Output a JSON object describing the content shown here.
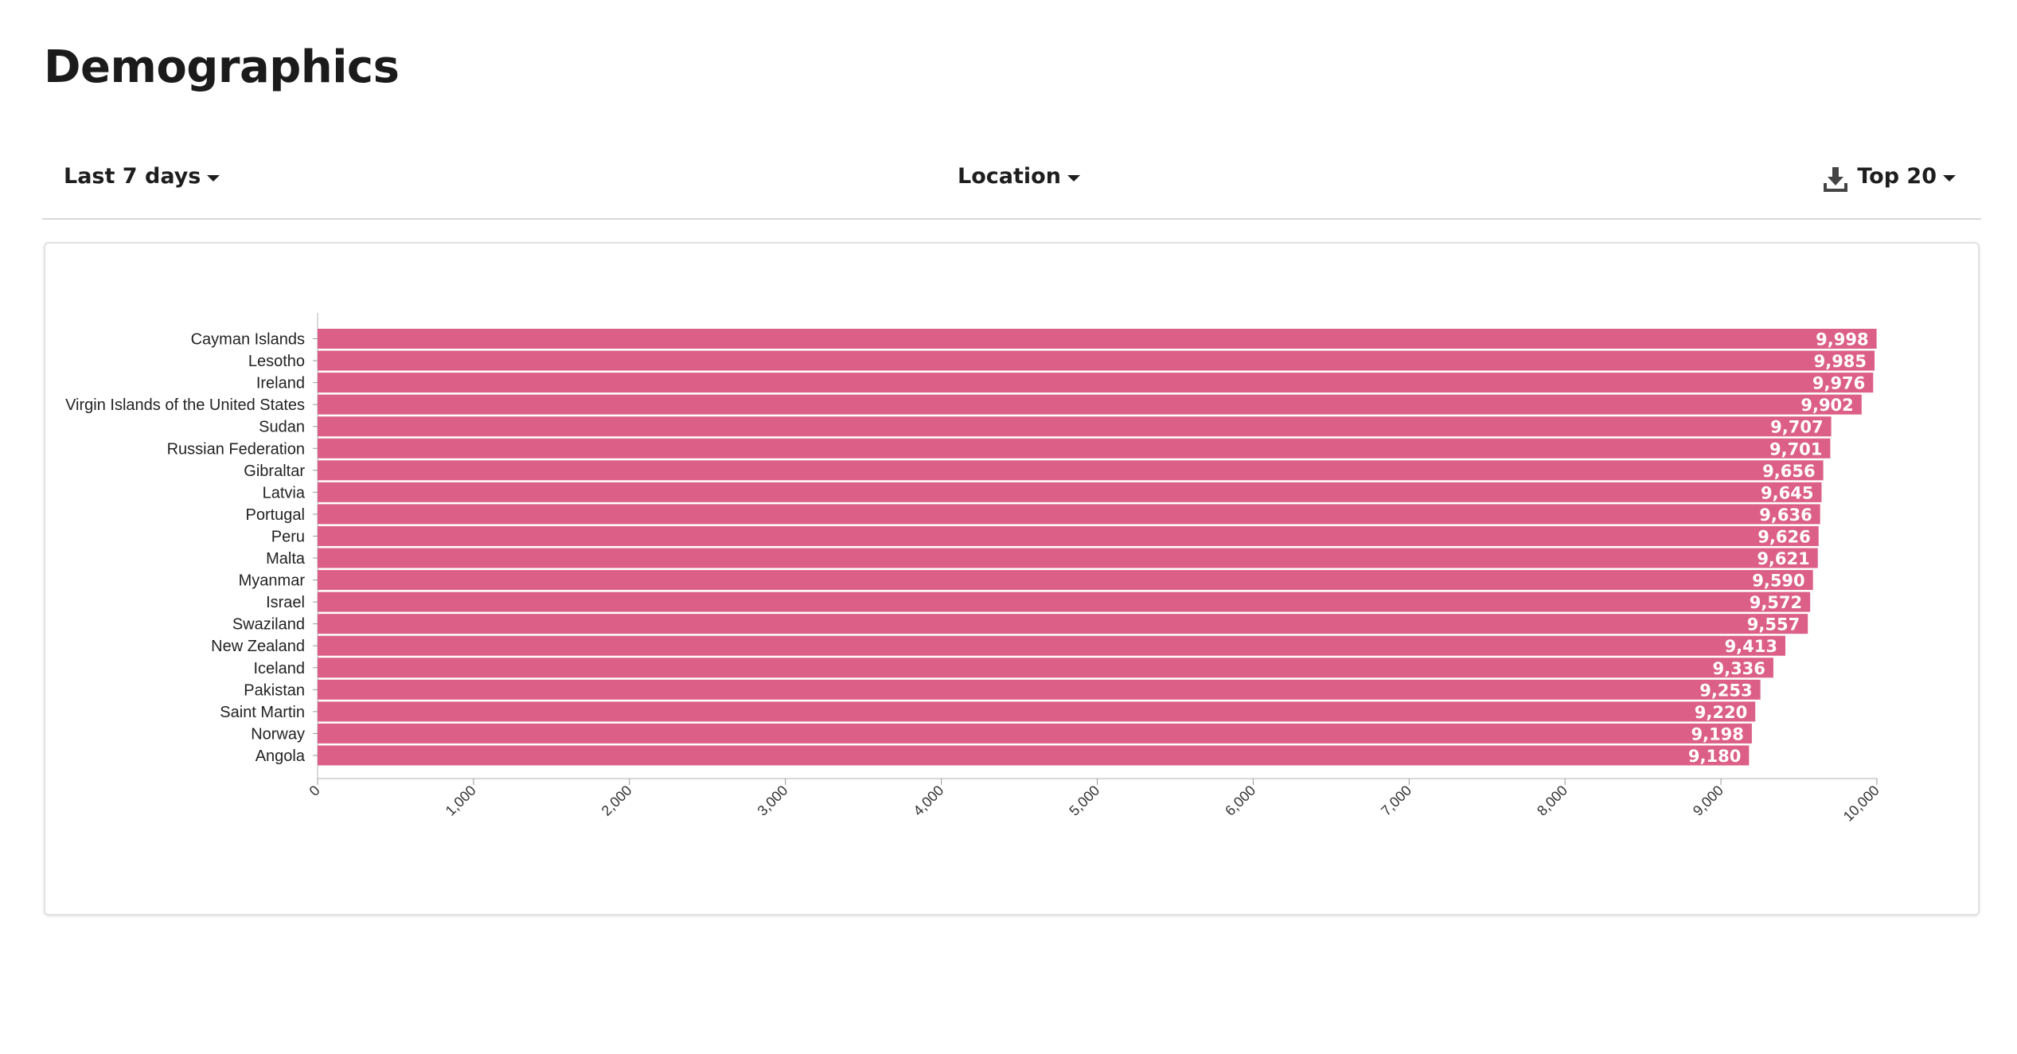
{
  "page": {
    "title": "Demographics"
  },
  "toolbar": {
    "period_label": "Last 7 days",
    "metric_label": "Location",
    "limit_label": "Top 20",
    "download_icon": "download-icon"
  },
  "chart_data": {
    "type": "bar",
    "orientation": "horizontal",
    "categories": [
      "Cayman Islands",
      "Lesotho",
      "Ireland",
      "Virgin Islands of the United States",
      "Sudan",
      "Russian Federation",
      "Gibraltar",
      "Latvia",
      "Portugal",
      "Peru",
      "Malta",
      "Myanmar",
      "Israel",
      "Swaziland",
      "New Zealand",
      "Iceland",
      "Pakistan",
      "Saint Martin",
      "Norway",
      "Angola"
    ],
    "values": [
      9998,
      9985,
      9976,
      9902,
      9707,
      9701,
      9656,
      9645,
      9636,
      9626,
      9621,
      9590,
      9572,
      9557,
      9413,
      9336,
      9253,
      9220,
      9198,
      9180
    ],
    "value_labels": [
      "9,998",
      "9,985",
      "9,976",
      "9,902",
      "9,707",
      "9,701",
      "9,656",
      "9,645",
      "9,636",
      "9,626",
      "9,621",
      "9,590",
      "9,572",
      "9,557",
      "9,413",
      "9,336",
      "9,253",
      "9,220",
      "9,198",
      "9,180"
    ],
    "xlim": [
      0,
      10000
    ],
    "x_ticks": [
      0,
      1000,
      2000,
      3000,
      4000,
      5000,
      6000,
      7000,
      8000,
      9000,
      10000
    ],
    "x_tick_labels": [
      "0",
      "1,000",
      "2,000",
      "3,000",
      "4,000",
      "5,000",
      "6,000",
      "7,000",
      "8,000",
      "9,000",
      "10,000"
    ],
    "bar_color": "#dc5f87",
    "grid": false,
    "legend": false
  }
}
